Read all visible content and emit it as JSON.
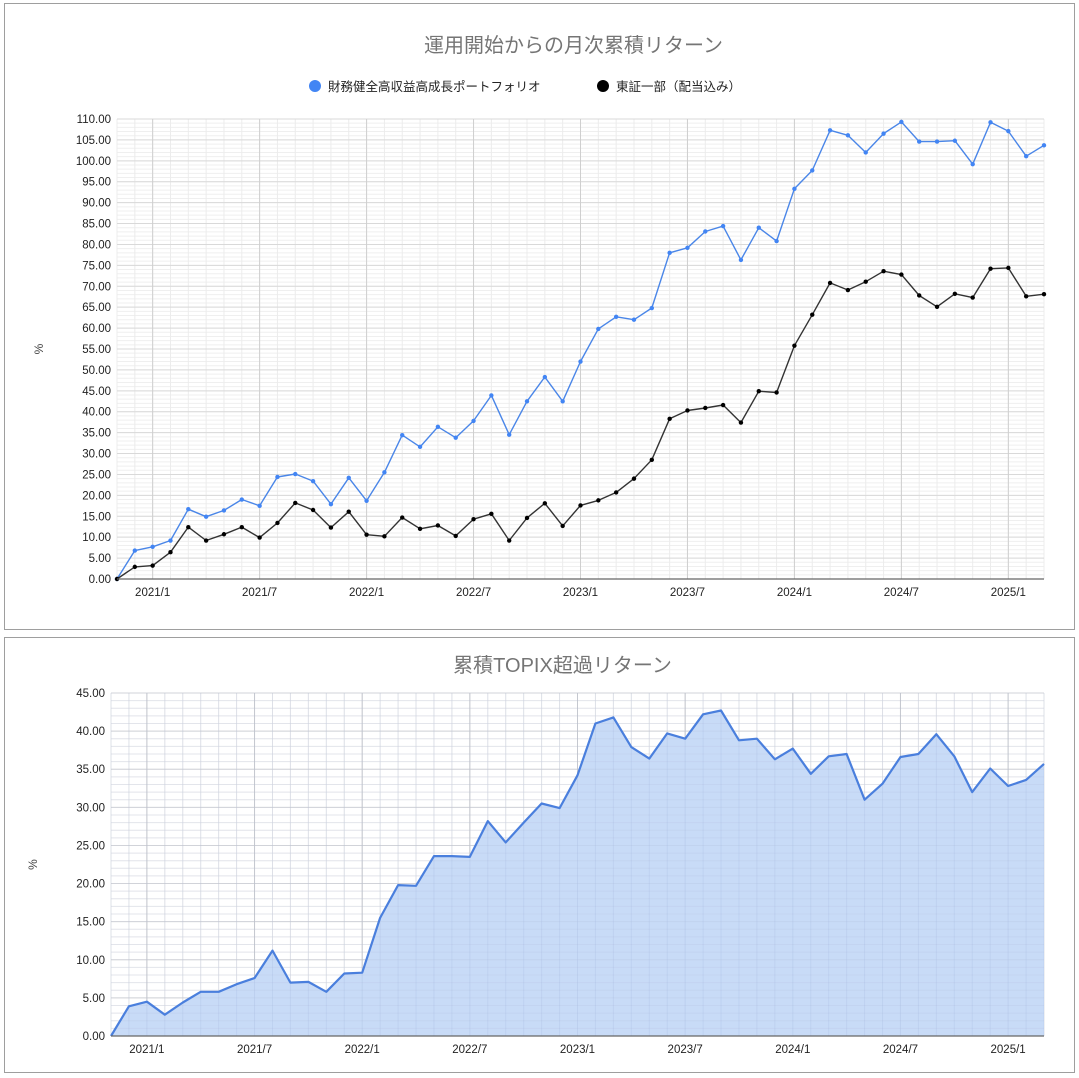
{
  "chart_data": [
    {
      "type": "line",
      "title": "運用開始からの月次累積リターン",
      "xlabel": "",
      "ylabel": "%",
      "ylim": [
        0,
        110
      ],
      "y_ticks": [
        "0.00",
        "5.00",
        "10.00",
        "15.00",
        "20.00",
        "25.00",
        "30.00",
        "35.00",
        "40.00",
        "45.00",
        "50.00",
        "55.00",
        "60.00",
        "65.00",
        "70.00",
        "75.00",
        "80.00",
        "85.00",
        "90.00",
        "95.00",
        "100.00",
        "105.00",
        "110.00"
      ],
      "x_tick_labels": [
        "2021/1",
        "2021/7",
        "2022/1",
        "2022/7",
        "2023/1",
        "2023/7",
        "2024/1",
        "2024/7",
        "2025/1"
      ],
      "legend_position": "top",
      "grid": true,
      "x": [
        "2020/11",
        "2020/12",
        "2021/1",
        "2021/2",
        "2021/3",
        "2021/4",
        "2021/5",
        "2021/6",
        "2021/7",
        "2021/8",
        "2021/9",
        "2021/10",
        "2021/11",
        "2021/12",
        "2022/1",
        "2022/2",
        "2022/3",
        "2022/4",
        "2022/5",
        "2022/6",
        "2022/7",
        "2022/8",
        "2022/9",
        "2022/10",
        "2022/11",
        "2022/12",
        "2023/1",
        "2023/2",
        "2023/3",
        "2023/4",
        "2023/5",
        "2023/6",
        "2023/7",
        "2023/8",
        "2023/9",
        "2023/10",
        "2023/11",
        "2023/12",
        "2024/1",
        "2024/2",
        "2024/3",
        "2024/4",
        "2024/5",
        "2024/6",
        "2024/7",
        "2024/8",
        "2024/9",
        "2024/10",
        "2024/11",
        "2024/12",
        "2025/1",
        "2025/2",
        "2025/3"
      ],
      "series": [
        {
          "name": "財務健全高収益高成長ポートフォリオ",
          "color": "#4285f4",
          "values": [
            0.0,
            6.8,
            7.7,
            9.2,
            16.7,
            14.9,
            16.4,
            19.0,
            17.5,
            24.4,
            25.1,
            23.4,
            17.9,
            24.2,
            18.7,
            25.5,
            34.4,
            31.6,
            36.4,
            33.8,
            37.8,
            43.9,
            34.5,
            42.5,
            48.3,
            42.5,
            52.0,
            59.8,
            62.7,
            62.0,
            64.8,
            78.0,
            79.2,
            83.1,
            84.4,
            76.3,
            84.0,
            80.8,
            93.3,
            97.7,
            107.3,
            106.1,
            102.0,
            106.5,
            109.3,
            104.6,
            104.6,
            104.8,
            99.2,
            109.2,
            107.1,
            101.1,
            103.7
          ]
        },
        {
          "name": "東証一部（配当込み）",
          "color": "#000000",
          "values": [
            0.0,
            2.9,
            3.2,
            6.4,
            12.4,
            9.2,
            10.7,
            12.4,
            9.9,
            13.4,
            18.2,
            16.5,
            12.3,
            16.1,
            10.6,
            10.2,
            14.7,
            12.0,
            12.8,
            10.3,
            14.3,
            15.6,
            9.2,
            14.6,
            18.1,
            12.7,
            17.6,
            18.8,
            20.7,
            24.0,
            28.5,
            38.3,
            40.3,
            40.9,
            41.6,
            37.4,
            44.9,
            44.6,
            55.8,
            63.2,
            70.8,
            69.1,
            71.1,
            73.6,
            72.8,
            67.8,
            65.1,
            68.2,
            67.3,
            74.2,
            74.4,
            67.6,
            68.1
          ]
        }
      ]
    },
    {
      "type": "area",
      "title": "累積TOPIX超過リターン",
      "xlabel": "",
      "ylabel": "%",
      "ylim": [
        0,
        45
      ],
      "y_ticks": [
        "0.00",
        "5.00",
        "10.00",
        "15.00",
        "20.00",
        "25.00",
        "30.00",
        "35.00",
        "40.00",
        "45.00"
      ],
      "x_tick_labels": [
        "2021/1",
        "2021/7",
        "2022/1",
        "2022/7",
        "2023/1",
        "2023/7",
        "2024/1",
        "2024/7",
        "2025/1"
      ],
      "grid": true,
      "x": [
        "2020/11",
        "2020/12",
        "2021/1",
        "2021/2",
        "2021/3",
        "2021/4",
        "2021/5",
        "2021/6",
        "2021/7",
        "2021/8",
        "2021/9",
        "2021/10",
        "2021/11",
        "2021/12",
        "2022/1",
        "2022/2",
        "2022/3",
        "2022/4",
        "2022/5",
        "2022/6",
        "2022/7",
        "2022/8",
        "2022/9",
        "2022/10",
        "2022/11",
        "2022/12",
        "2023/1",
        "2023/2",
        "2023/3",
        "2023/4",
        "2023/5",
        "2023/6",
        "2023/7",
        "2023/8",
        "2023/9",
        "2023/10",
        "2023/11",
        "2023/12",
        "2024/1",
        "2024/2",
        "2024/3",
        "2024/4",
        "2024/5",
        "2024/6",
        "2024/7",
        "2024/8",
        "2024/9",
        "2024/10",
        "2024/11",
        "2024/12",
        "2025/1",
        "2025/2",
        "2025/3"
      ],
      "series": [
        {
          "name": "累積TOPIX超過リターン",
          "color": "#4a7fdd",
          "fill": "#c5d9f7",
          "values": [
            0.0,
            3.9,
            4.5,
            2.8,
            4.4,
            5.8,
            5.8,
            6.8,
            7.6,
            11.2,
            7.0,
            7.1,
            5.8,
            8.2,
            8.3,
            15.5,
            19.8,
            19.7,
            23.6,
            23.6,
            23.5,
            28.2,
            25.4,
            28.0,
            30.5,
            29.9,
            34.2,
            41.0,
            41.8,
            37.9,
            36.4,
            39.7,
            39.0,
            42.2,
            42.7,
            38.8,
            39.0,
            36.3,
            37.7,
            34.4,
            36.7,
            37.0,
            31.0,
            33.1,
            36.6,
            37.0,
            39.6,
            36.7,
            32.0,
            35.1,
            32.8,
            33.6,
            35.7
          ]
        }
      ]
    }
  ]
}
